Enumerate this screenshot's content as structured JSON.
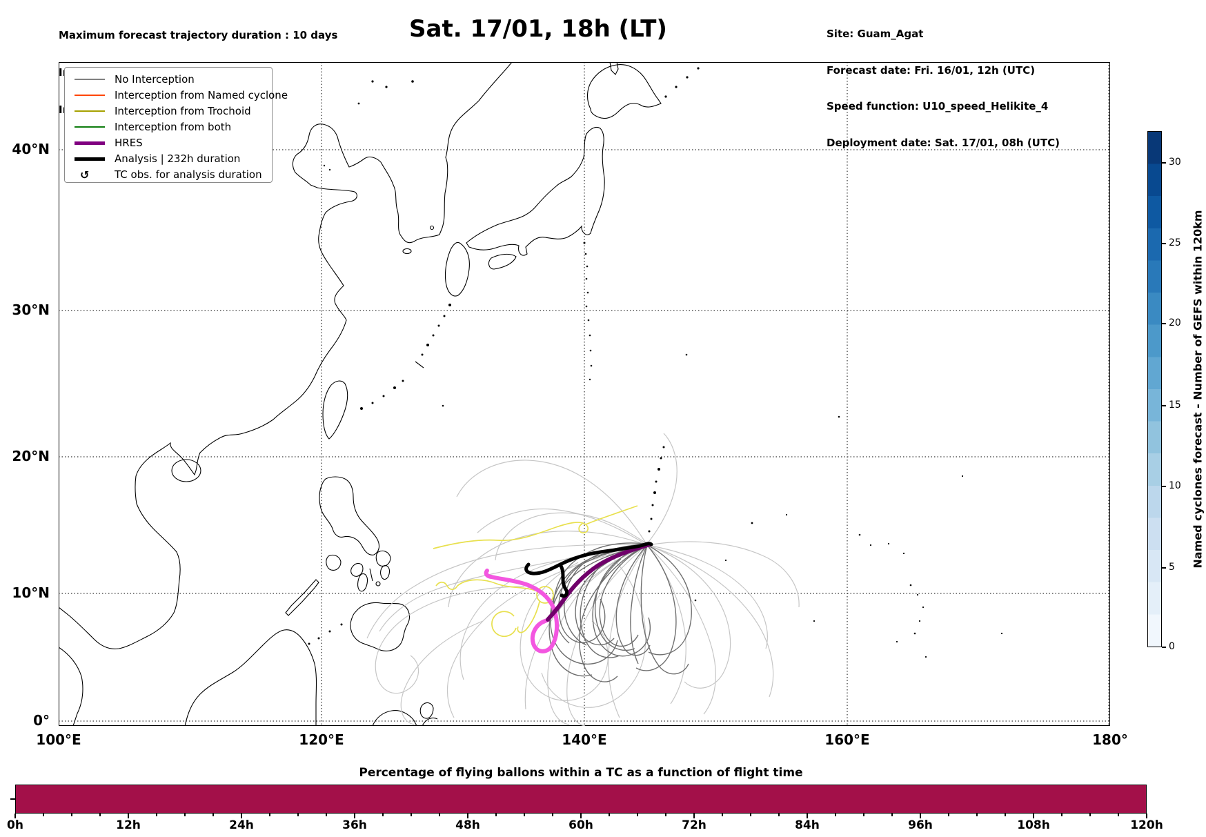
{
  "header": {
    "left": {
      "line1": "Maximum forecast trajectory duration : 10 days",
      "line2": "Intercept distance: 300km",
      "line3": "Intercept RW2: 12km/h2"
    },
    "title": "Sat. 17/01, 18h (LT)",
    "right": {
      "line1": "Site: Guam_Agat",
      "line2": "Forecast date: Fri. 16/01, 12h (UTC)",
      "line3": "Speed function: U10_speed_Helikite_4",
      "line4": "Deployment date: Sat. 17/01, 08h (UTC)"
    }
  },
  "legend": {
    "items": [
      {
        "label": "No Interception",
        "color": "#808080",
        "style": "thin"
      },
      {
        "label": "Interception from Named cyclone",
        "color": "#ff4500",
        "style": "thin"
      },
      {
        "label": "Interception from Trochoid",
        "color": "#a6a100",
        "style": "thin"
      },
      {
        "label": "Interception from both",
        "color": "#0f7d0f",
        "style": "thin"
      },
      {
        "label": "HRES",
        "color": "#800080",
        "style": "thick"
      },
      {
        "label": "Analysis | 232h duration",
        "color": "#000000",
        "style": "thick"
      },
      {
        "label": "TC obs. for analysis duration",
        "symbol": "↺",
        "style": "symbol"
      }
    ]
  },
  "map": {
    "lat_labels": [
      "40°N",
      "30°N",
      "20°N",
      "10°N",
      "0°"
    ],
    "lon_labels": [
      "100°E",
      "120°E",
      "140°E",
      "160°E",
      "180°"
    ],
    "deployment_site": "Guam"
  },
  "colorbar": {
    "label": "Named cyclones forecast - Number of GEFS within 120km",
    "ticks": [
      "30",
      "25",
      "20",
      "15",
      "10",
      "5",
      "0"
    ],
    "range": [
      0,
      32
    ],
    "colors_top_to_bottom": [
      "#083877",
      "#084990",
      "#0e59a2",
      "#1b69af",
      "#2979b9",
      "#3a8ac2",
      "#4c99ca",
      "#61a7d2",
      "#78b5d9",
      "#91c3de",
      "#a8cfe5",
      "#bcd7ec",
      "#ccdff1",
      "#d8e7f5",
      "#e4eff9",
      "#f1f7fd"
    ]
  },
  "bottom_chart": {
    "title": "Percentage of flying ballons within a TC as a function of flight time",
    "ticks": [
      "0h",
      "12h",
      "24h",
      "36h",
      "48h",
      "60h",
      "72h",
      "84h",
      "96h",
      "108h",
      "120h"
    ]
  },
  "chart_data": {
    "type": "bar",
    "title": "Percentage of flying ballons within a TC as a function of flight time",
    "categories": [
      "0h",
      "12h",
      "24h",
      "36h",
      "48h",
      "60h",
      "72h",
      "84h",
      "96h",
      "108h",
      "120h"
    ],
    "values": [
      100,
      100,
      100,
      100,
      100,
      100,
      100,
      100,
      100,
      100,
      100
    ],
    "xlabel": "flight time",
    "ylabel": "percentage",
    "ylim": [
      0,
      100
    ],
    "note": "single full-width bar at 100% for the whole 0-120h flight time"
  },
  "colors": {
    "bar_fill": "#a31049",
    "gray_light": "#c6c6c6",
    "gray_dark": "#6f6f6f",
    "trochoid_yellow": "#e8e04e",
    "hres_pink": "#f356e0",
    "hres_purple": "#70006b",
    "analysis_black": "#000000",
    "figure_bg": "#ffffff"
  }
}
